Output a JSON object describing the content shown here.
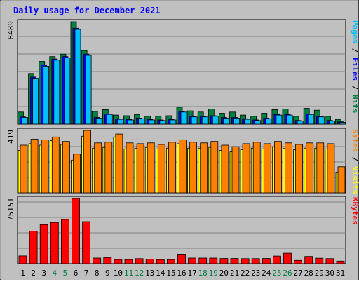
{
  "chart_data": {
    "type": "bar",
    "title": "Daily usage for December 2021",
    "categories": [
      "1",
      "2",
      "3",
      "4",
      "5",
      "6",
      "7",
      "8",
      "9",
      "10",
      "11",
      "12",
      "13",
      "14",
      "15",
      "16",
      "17",
      "18",
      "19",
      "20",
      "21",
      "22",
      "23",
      "24",
      "25",
      "26",
      "27",
      "28",
      "29",
      "30",
      "31"
    ],
    "weekend_days": [
      4,
      5,
      11,
      12,
      18,
      19,
      25,
      26
    ],
    "panels": [
      {
        "id": "hits-files-pages",
        "ylim": [
          0,
          8489
        ],
        "max_label": "8489",
        "side_label": [
          {
            "text": "Pages",
            "color": "#00c0ff"
          },
          {
            "text": " / ",
            "color": "#000000"
          },
          {
            "text": "Files",
            "color": "#0000ff"
          },
          {
            "text": " / ",
            "color": "#000000"
          },
          {
            "text": "Hits",
            "color": "#008040"
          }
        ],
        "series": [
          {
            "key": "hits",
            "color": "#008040",
            "values": [
              1000,
              4200,
              5200,
              5600,
              5800,
              8489,
              6100,
              1050,
              1200,
              750,
              700,
              800,
              650,
              650,
              700,
              1400,
              1100,
              1000,
              1250,
              900,
              1000,
              750,
              650,
              900,
              1200,
              1250,
              650,
              1300,
              1150,
              650,
              400
            ]
          },
          {
            "key": "files",
            "color": "#0000ff",
            "values": [
              600,
              3900,
              4900,
              5400,
              5600,
              7950,
              5800,
              550,
              850,
              450,
              400,
              500,
              400,
              350,
              400,
              1050,
              650,
              650,
              700,
              550,
              550,
              450,
              350,
              500,
              800,
              800,
              300,
              850,
              650,
              300,
              200
            ]
          },
          {
            "key": "pages",
            "color": "#00c0ff",
            "values": [
              550,
              3800,
              4800,
              5300,
              5500,
              7850,
              5700,
              500,
              800,
              400,
              350,
              450,
              350,
              300,
              350,
              1000,
              600,
              600,
              650,
              500,
              500,
              400,
              300,
              450,
              750,
              750,
              250,
              800,
              600,
              250,
              150
            ]
          }
        ]
      },
      {
        "id": "visits-sites",
        "ylim": [
          0,
          419
        ],
        "max_label": "419",
        "side_label": [
          {
            "text": "Sites",
            "color": "#ff8000"
          },
          {
            "text": " / ",
            "color": "#000000"
          },
          {
            "text": "Visits",
            "color": "#ffff00"
          }
        ],
        "series": [
          {
            "key": "visits",
            "color": "#ffff00",
            "values": [
              285,
              330,
              320,
              350,
              325,
              220,
              380,
              300,
              305,
              375,
              295,
              300,
              305,
              295,
              300,
              330,
              300,
              300,
              305,
              285,
              275,
              290,
              300,
              295,
              310,
              300,
              290,
              300,
              300,
              295,
              140
            ]
          },
          {
            "key": "sites",
            "color": "#ff8000",
            "values": [
              320,
              360,
              355,
              375,
              345,
              260,
              419,
              335,
              340,
              395,
              335,
              330,
              335,
              325,
              340,
              355,
              340,
              335,
              345,
              320,
              310,
              330,
              340,
              330,
              345,
              335,
              325,
              335,
              335,
              330,
              175
            ]
          }
        ]
      },
      {
        "id": "kbytes",
        "ylim": [
          0,
          75151
        ],
        "max_label": "75151",
        "side_label": [
          {
            "text": "KBytes",
            "color": "#ff0000"
          }
        ],
        "series": [
          {
            "key": "kbytes",
            "color": "#ff0000",
            "values": [
              9000,
              37500,
              45000,
              47500,
              51000,
              75151,
              48500,
              6500,
              7000,
              4800,
              4800,
              5800,
              5300,
              4800,
              4800,
              11000,
              6500,
              6500,
              6500,
              6000,
              6000,
              5800,
              5800,
              6000,
              8800,
              12000,
              3800,
              8300,
              6300,
              5800,
              3000
            ]
          }
        ]
      }
    ]
  }
}
